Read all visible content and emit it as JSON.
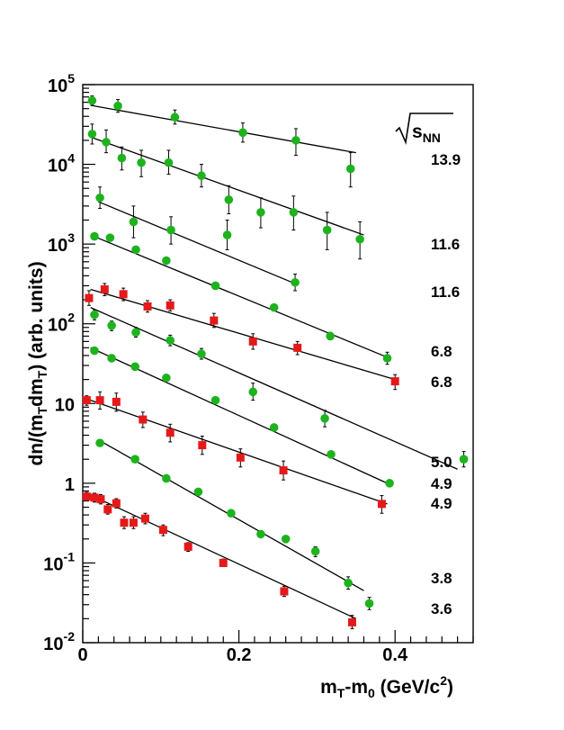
{
  "chart_data": {
    "type": "scatter",
    "title": "",
    "xlabel": {
      "main": "m",
      "sub1": "T",
      "mid": "-m",
      "sub2": "0",
      "unit": " (GeV/c",
      "sup": "2",
      "end": ")"
    },
    "ylabel": {
      "pre": "dn/(m",
      "sub1": "T",
      "mid": "dm",
      "sub2": "T",
      "end": ") (arb. units)"
    },
    "xlim": [
      0,
      0.5
    ],
    "ylim_log10": [
      -2,
      5
    ],
    "yscale": "log",
    "x_tick_labels": [
      "0",
      "0.2",
      "0.4"
    ],
    "y_tick_labels": [
      {
        "base": "10",
        "exp": "5"
      },
      {
        "base": "10",
        "exp": "4"
      },
      {
        "base": "10",
        "exp": "3"
      },
      {
        "base": "10",
        "exp": "2"
      },
      {
        "base": "10",
        "exp": ""
      },
      {
        "base": "1",
        "exp": ""
      },
      {
        "base": "10",
        "exp": "-1"
      },
      {
        "base": "10",
        "exp": "-2"
      }
    ],
    "legend_header": {
      "text": "s",
      "sub": "NN"
    },
    "colors": {
      "green": "#1db31d",
      "red": "#e51919",
      "line": "#000000"
    },
    "series": [
      {
        "label": "13.9",
        "marker": "circle",
        "color": "#1db31d",
        "fit": [
          [
            0.01,
            55000
          ],
          [
            0.35,
            14000
          ]
        ],
        "points": [
          {
            "x": 0.012,
            "y": 63000,
            "ylo": 55000,
            "yhi": 72000
          },
          {
            "x": 0.045,
            "y": 54000,
            "ylo": 45000,
            "yhi": 65000
          },
          {
            "x": 0.118,
            "y": 39000,
            "ylo": 32000,
            "yhi": 48000
          },
          {
            "x": 0.205,
            "y": 25000,
            "ylo": 19000,
            "yhi": 33000
          },
          {
            "x": 0.273,
            "y": 20000,
            "ylo": 13000,
            "yhi": 28000
          },
          {
            "x": 0.343,
            "y": 8800,
            "ylo": 5200,
            "yhi": 14000
          }
        ]
      },
      {
        "label": "11.6",
        "marker": "circle",
        "color": "#1db31d",
        "fit": [
          [
            0.01,
            22000
          ],
          [
            0.36,
            1300
          ]
        ],
        "points": [
          {
            "x": 0.012,
            "y": 24000,
            "ylo": 18000,
            "yhi": 32000
          },
          {
            "x": 0.03,
            "y": 19000,
            "ylo": 14000,
            "yhi": 27000
          },
          {
            "x": 0.05,
            "y": 12000,
            "ylo": 8500,
            "yhi": 16500
          },
          {
            "x": 0.075,
            "y": 10500,
            "ylo": 7000,
            "yhi": 15000
          },
          {
            "x": 0.11,
            "y": 10500,
            "ylo": 7500,
            "yhi": 15000
          },
          {
            "x": 0.152,
            "y": 7200,
            "ylo": 5200,
            "yhi": 10000
          },
          {
            "x": 0.187,
            "y": 3600,
            "ylo": 2400,
            "yhi": 5400
          },
          {
            "x": 0.228,
            "y": 2500,
            "ylo": 1600,
            "yhi": 3800
          },
          {
            "x": 0.27,
            "y": 2500,
            "ylo": 1500,
            "yhi": 4000
          },
          {
            "x": 0.313,
            "y": 1500,
            "ylo": 850,
            "yhi": 2500
          },
          {
            "x": 0.355,
            "y": 1150,
            "ylo": 650,
            "yhi": 1900
          }
        ]
      },
      {
        "label": "11.6",
        "marker": "circle",
        "color": "#1db31d",
        "fit": [
          [
            0.02,
            3400
          ],
          [
            0.275,
            310
          ]
        ],
        "points": [
          {
            "x": 0.022,
            "y": 3800,
            "ylo": 2800,
            "yhi": 5200
          },
          {
            "x": 0.065,
            "y": 1900,
            "ylo": 1200,
            "yhi": 3000
          },
          {
            "x": 0.113,
            "y": 1500,
            "ylo": 1000,
            "yhi": 2200
          },
          {
            "x": 0.185,
            "y": 1300,
            "ylo": 850,
            "yhi": 2000
          },
          {
            "x": 0.272,
            "y": 330,
            "ylo": 260,
            "yhi": 420
          }
        ]
      },
      {
        "label": "6.8",
        "marker": "circle",
        "color": "#1db31d",
        "fit": [
          [
            0.01,
            1300
          ],
          [
            0.39,
            38
          ]
        ],
        "points": [
          {
            "x": 0.015,
            "y": 1250,
            "ylo": 1150,
            "yhi": 1350
          },
          {
            "x": 0.035,
            "y": 1200,
            "ylo": 1100,
            "yhi": 1300
          },
          {
            "x": 0.068,
            "y": 850,
            "ylo": 780,
            "yhi": 920
          },
          {
            "x": 0.107,
            "y": 620,
            "ylo": 570,
            "yhi": 670
          },
          {
            "x": 0.17,
            "y": 300,
            "ylo": 275,
            "yhi": 325
          },
          {
            "x": 0.245,
            "y": 160,
            "ylo": 145,
            "yhi": 175
          },
          {
            "x": 0.317,
            "y": 70,
            "ylo": 63,
            "yhi": 78
          },
          {
            "x": 0.39,
            "y": 37,
            "ylo": 31,
            "yhi": 44
          }
        ]
      },
      {
        "label": "6.8",
        "marker": "square",
        "color": "#e51919",
        "fit": [
          [
            0.01,
            270
          ],
          [
            0.4,
            20
          ]
        ],
        "points": [
          {
            "x": 0.008,
            "y": 210,
            "ylo": 170,
            "yhi": 260
          },
          {
            "x": 0.028,
            "y": 270,
            "ylo": 225,
            "yhi": 320
          },
          {
            "x": 0.052,
            "y": 235,
            "ylo": 195,
            "yhi": 280
          },
          {
            "x": 0.083,
            "y": 165,
            "ylo": 140,
            "yhi": 195
          },
          {
            "x": 0.112,
            "y": 170,
            "ylo": 145,
            "yhi": 200
          },
          {
            "x": 0.168,
            "y": 110,
            "ylo": 90,
            "yhi": 135
          },
          {
            "x": 0.218,
            "y": 60,
            "ylo": 48,
            "yhi": 75
          },
          {
            "x": 0.275,
            "y": 50,
            "ylo": 41,
            "yhi": 60
          },
          {
            "x": 0.4,
            "y": 19,
            "ylo": 15,
            "yhi": 23
          }
        ]
      },
      {
        "label": "5.0",
        "marker": "circle",
        "color": "#1db31d",
        "fit": [
          [
            0.01,
            160
          ],
          [
            0.48,
            1.5
          ]
        ],
        "points": [
          {
            "x": 0.015,
            "y": 130,
            "ylo": 112,
            "yhi": 150
          },
          {
            "x": 0.037,
            "y": 95,
            "ylo": 82,
            "yhi": 108
          },
          {
            "x": 0.068,
            "y": 78,
            "ylo": 68,
            "yhi": 90
          },
          {
            "x": 0.112,
            "y": 62,
            "ylo": 53,
            "yhi": 72
          },
          {
            "x": 0.152,
            "y": 42,
            "ylo": 36,
            "yhi": 49
          },
          {
            "x": 0.218,
            "y": 14,
            "ylo": 11,
            "yhi": 18
          },
          {
            "x": 0.31,
            "y": 6.5,
            "ylo": 5.1,
            "yhi": 8.2
          },
          {
            "x": 0.488,
            "y": 2.0,
            "ylo": 1.6,
            "yhi": 2.5
          }
        ]
      },
      {
        "label": "4.9",
        "marker": "circle",
        "color": "#1db31d",
        "fit": [
          [
            0.01,
            50
          ],
          [
            0.39,
            1.0
          ]
        ],
        "points": [
          {
            "x": 0.015,
            "y": 46,
            "ylo": 43,
            "yhi": 49
          },
          {
            "x": 0.037,
            "y": 37,
            "ylo": 35,
            "yhi": 39
          },
          {
            "x": 0.067,
            "y": 29,
            "ylo": 27,
            "yhi": 31
          },
          {
            "x": 0.107,
            "y": 21,
            "ylo": 19.6,
            "yhi": 22.4
          },
          {
            "x": 0.17,
            "y": 11,
            "ylo": 10.2,
            "yhi": 11.8
          },
          {
            "x": 0.245,
            "y": 5.0,
            "ylo": 4.6,
            "yhi": 5.4
          },
          {
            "x": 0.318,
            "y": 2.3,
            "ylo": 2.1,
            "yhi": 2.5
          },
          {
            "x": 0.393,
            "y": 1.0,
            "ylo": 0.92,
            "yhi": 1.08
          }
        ]
      },
      {
        "label": "4.9",
        "marker": "square",
        "color": "#e51919",
        "fit": [
          [
            0.01,
            11
          ],
          [
            0.39,
            0.55
          ]
        ],
        "points": [
          {
            "x": 0.005,
            "y": 11,
            "ylo": 9.5,
            "yhi": 12.5
          },
          {
            "x": 0.022,
            "y": 11,
            "ylo": 8.5,
            "yhi": 14
          },
          {
            "x": 0.043,
            "y": 10.5,
            "ylo": 8,
            "yhi": 13.5
          },
          {
            "x": 0.077,
            "y": 6.3,
            "ylo": 5,
            "yhi": 7.8
          },
          {
            "x": 0.112,
            "y": 4.3,
            "ylo": 3.3,
            "yhi": 5.5
          },
          {
            "x": 0.153,
            "y": 3.0,
            "ylo": 2.3,
            "yhi": 3.9
          },
          {
            "x": 0.202,
            "y": 2.1,
            "ylo": 1.6,
            "yhi": 2.7
          },
          {
            "x": 0.257,
            "y": 1.45,
            "ylo": 1.1,
            "yhi": 1.9
          },
          {
            "x": 0.383,
            "y": 0.55,
            "ylo": 0.42,
            "yhi": 0.7
          }
        ]
      },
      {
        "label": "3.8",
        "marker": "circle",
        "color": "#1db31d",
        "fit": [
          [
            0.02,
            3.5
          ],
          [
            0.36,
            0.045
          ]
        ],
        "points": [
          {
            "x": 0.022,
            "y": 3.2,
            "ylo": 3.0,
            "yhi": 3.4
          },
          {
            "x": 0.067,
            "y": 2.0,
            "ylo": 1.88,
            "yhi": 2.12
          },
          {
            "x": 0.107,
            "y": 1.15,
            "ylo": 1.08,
            "yhi": 1.22
          },
          {
            "x": 0.148,
            "y": 0.78,
            "ylo": 0.73,
            "yhi": 0.83
          },
          {
            "x": 0.19,
            "y": 0.42,
            "ylo": 0.39,
            "yhi": 0.45
          },
          {
            "x": 0.228,
            "y": 0.23,
            "ylo": 0.21,
            "yhi": 0.25
          },
          {
            "x": 0.26,
            "y": 0.2,
            "ylo": 0.18,
            "yhi": 0.22
          },
          {
            "x": 0.298,
            "y": 0.14,
            "ylo": 0.12,
            "yhi": 0.16
          },
          {
            "x": 0.34,
            "y": 0.056,
            "ylo": 0.047,
            "yhi": 0.067
          },
          {
            "x": 0.367,
            "y": 0.031,
            "ylo": 0.026,
            "yhi": 0.037
          }
        ]
      },
      {
        "label": "3.6",
        "marker": "square",
        "color": "#e51919",
        "fit": [
          [
            0.005,
            0.75
          ],
          [
            0.35,
            0.02
          ]
        ],
        "points": [
          {
            "x": 0.005,
            "y": 0.68,
            "ylo": 0.6,
            "yhi": 0.77
          },
          {
            "x": 0.015,
            "y": 0.66,
            "ylo": 0.58,
            "yhi": 0.75
          },
          {
            "x": 0.023,
            "y": 0.63,
            "ylo": 0.55,
            "yhi": 0.72
          },
          {
            "x": 0.032,
            "y": 0.47,
            "ylo": 0.41,
            "yhi": 0.54
          },
          {
            "x": 0.043,
            "y": 0.56,
            "ylo": 0.49,
            "yhi": 0.64
          },
          {
            "x": 0.053,
            "y": 0.32,
            "ylo": 0.27,
            "yhi": 0.38
          },
          {
            "x": 0.065,
            "y": 0.32,
            "ylo": 0.27,
            "yhi": 0.38
          },
          {
            "x": 0.08,
            "y": 0.36,
            "ylo": 0.31,
            "yhi": 0.42
          },
          {
            "x": 0.103,
            "y": 0.26,
            "ylo": 0.22,
            "yhi": 0.3
          },
          {
            "x": 0.135,
            "y": 0.16,
            "ylo": 0.14,
            "yhi": 0.18
          },
          {
            "x": 0.18,
            "y": 0.1,
            "ylo": 0.09,
            "yhi": 0.112
          },
          {
            "x": 0.258,
            "y": 0.044,
            "ylo": 0.038,
            "yhi": 0.051
          },
          {
            "x": 0.345,
            "y": 0.018,
            "ylo": 0.015,
            "yhi": 0.022
          }
        ]
      }
    ]
  }
}
